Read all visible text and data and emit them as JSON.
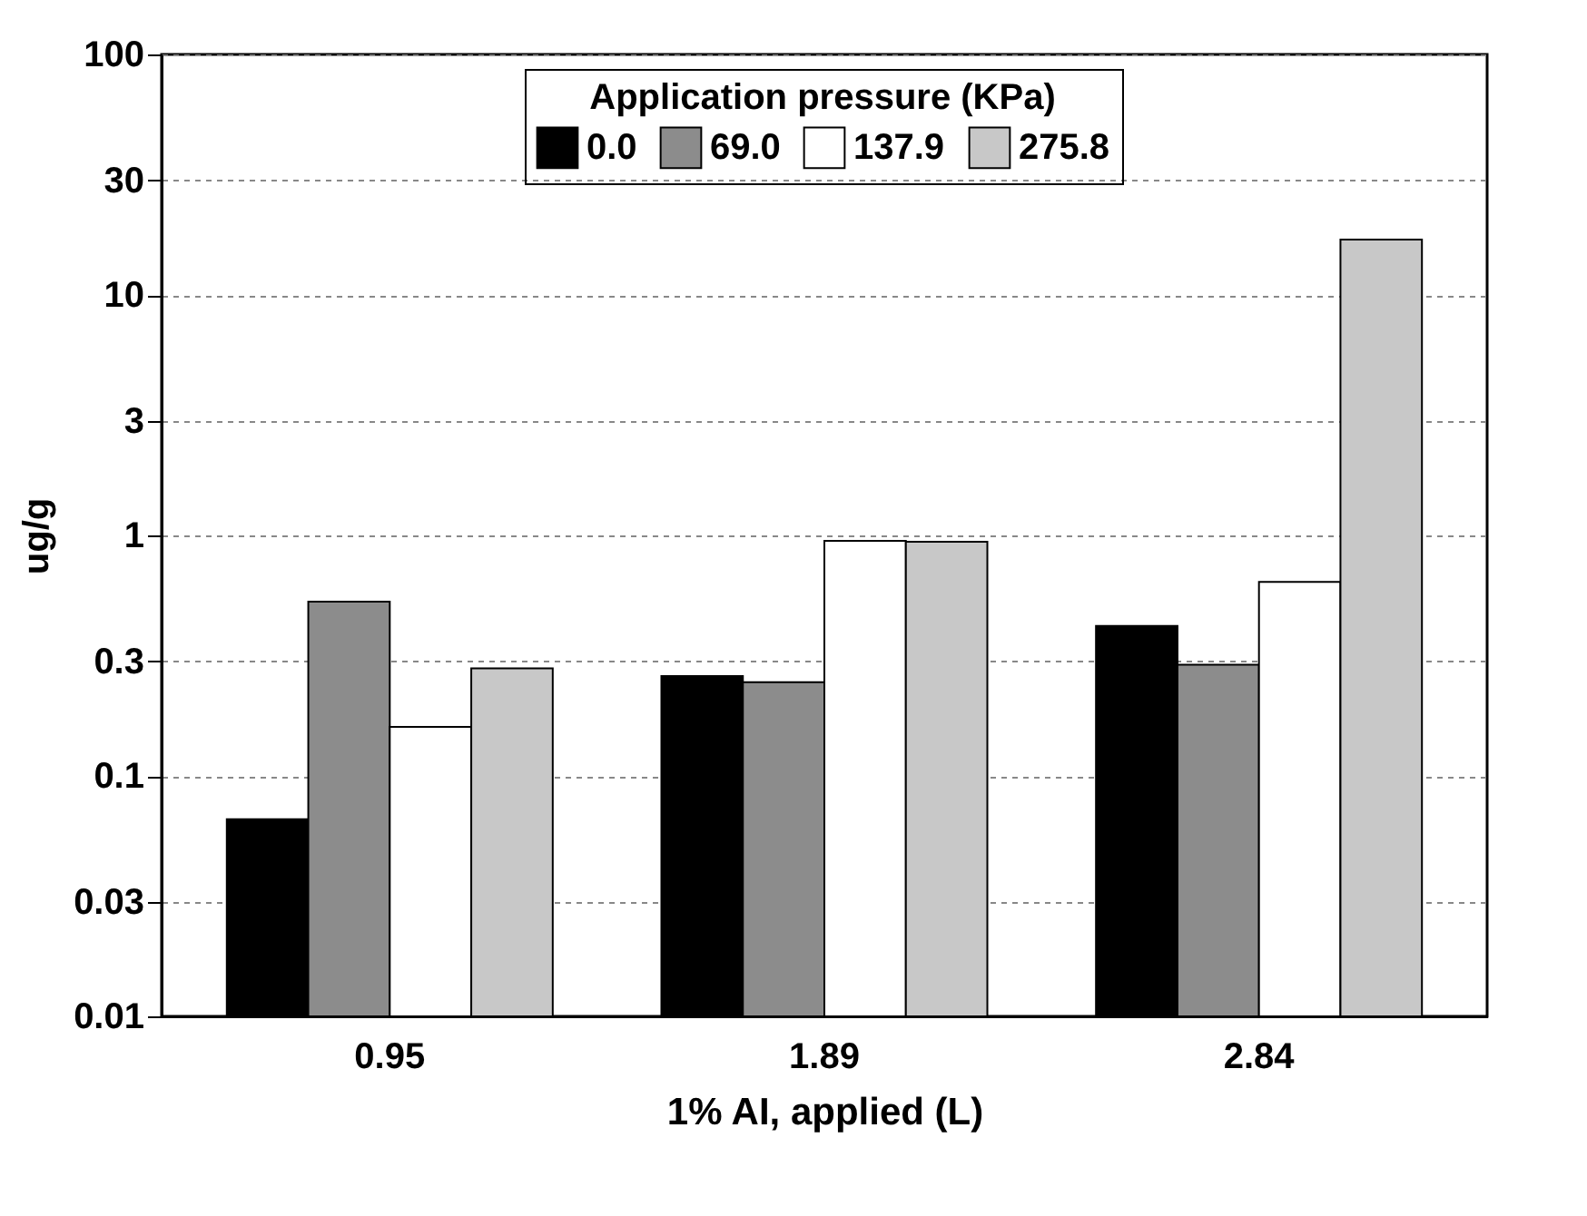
{
  "chart_data": {
    "type": "bar",
    "xlabel": "1% AI, applied (L)",
    "ylabel": "ug/g",
    "legend_title": "Application pressure (KPa)",
    "categories": [
      "0.95",
      "1.89",
      "2.84"
    ],
    "series": [
      {
        "name": "0.0",
        "color": "#000000",
        "values": [
          0.066,
          0.26,
          0.42
        ]
      },
      {
        "name": "69.0",
        "color": "#8c8c8c",
        "values": [
          0.53,
          0.245,
          0.29
        ]
      },
      {
        "name": "137.9",
        "color": "#ffffff",
        "values": [
          0.16,
          0.95,
          0.64
        ]
      },
      {
        "name": "275.8",
        "color": "#c8c8c8",
        "values": [
          0.28,
          0.94,
          17
        ]
      }
    ],
    "log": "y",
    "ylim": [
      0.01,
      100
    ],
    "yticks": [
      0.01,
      0.03,
      0.1,
      0.3,
      1,
      3,
      10,
      30,
      100
    ],
    "grid": "y",
    "legend": "top"
  }
}
